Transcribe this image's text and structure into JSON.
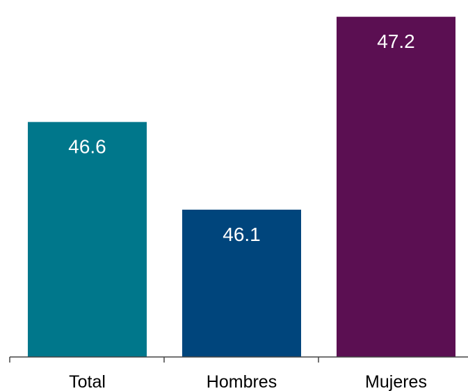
{
  "chart_data": {
    "type": "bar",
    "categories": [
      "Total",
      "Hombres",
      "Mujeres"
    ],
    "values": [
      46.6,
      46.1,
      47.2
    ],
    "data_labels": [
      "46.6",
      "46.1",
      "47.2"
    ],
    "colors": [
      "#00778B",
      "#00457C",
      "#5B0F52"
    ],
    "title": "",
    "xlabel": "",
    "ylabel": "",
    "y_axis_visible": false,
    "grid": false,
    "legend": "none"
  }
}
